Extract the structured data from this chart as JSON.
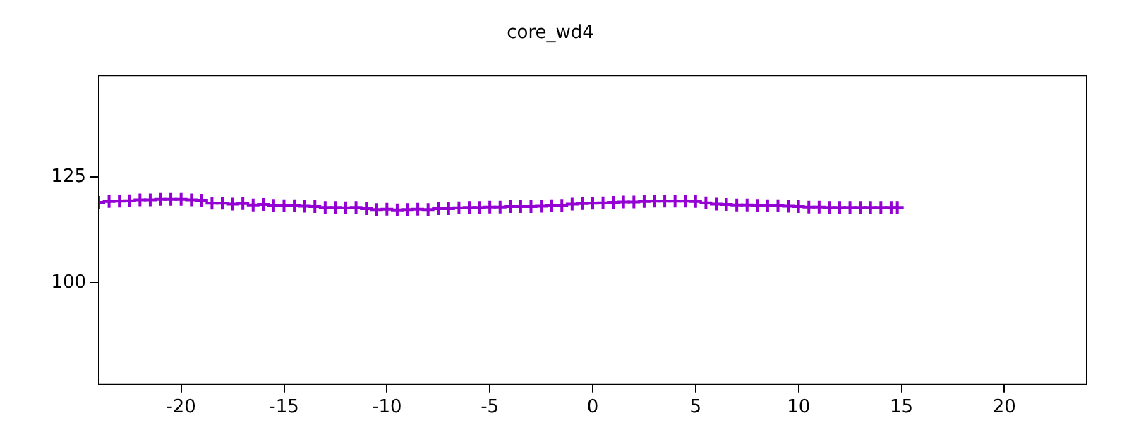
{
  "chart_data": {
    "type": "scatter",
    "title": "core_wd4",
    "xlim": [
      -24,
      24
    ],
    "xticks": [
      -20,
      -15,
      -10,
      -5,
      0,
      5,
      10,
      15,
      20
    ],
    "ylim": [
      76,
      149
    ],
    "yticks": [
      100,
      125
    ],
    "grid": false,
    "legend": false,
    "marker": "cross",
    "series": [
      {
        "color": "#9400d3",
        "x": [
          -24,
          -23.5,
          -23,
          -22.5,
          -22,
          -21.5,
          -21,
          -20.5,
          -20,
          -19.5,
          -19,
          -18.5,
          -18,
          -17.5,
          -17,
          -16.5,
          -16,
          -15.5,
          -15,
          -14.5,
          -14,
          -13.5,
          -13,
          -12.5,
          -12,
          -11.5,
          -11,
          -10.5,
          -10,
          -9.5,
          -9,
          -8.5,
          -8,
          -7.5,
          -7,
          -6.5,
          -6,
          -5.5,
          -5,
          -4.5,
          -4,
          -3.5,
          -3,
          -2.5,
          -2,
          -1.5,
          -1,
          -0.5,
          0,
          0.5,
          1,
          1.5,
          2,
          2.5,
          3,
          3.5,
          4,
          4.5,
          5,
          5.5,
          6,
          6.5,
          7,
          7.5,
          8,
          8.5,
          9,
          9.5,
          10,
          10.5,
          11,
          11.5,
          12,
          12.5,
          13,
          13.5,
          14,
          14.5,
          14.8
        ],
        "values": [
          119.0,
          119.2,
          119.3,
          119.4,
          119.6,
          119.6,
          119.7,
          119.7,
          119.7,
          119.6,
          119.5,
          118.8,
          118.8,
          118.6,
          118.7,
          118.4,
          118.5,
          118.3,
          118.2,
          118.2,
          118.1,
          118.0,
          117.8,
          117.8,
          117.7,
          117.8,
          117.5,
          117.3,
          117.4,
          117.2,
          117.3,
          117.4,
          117.3,
          117.5,
          117.5,
          117.7,
          117.8,
          117.8,
          117.9,
          117.9,
          118.0,
          118.0,
          118.0,
          118.1,
          118.2,
          118.3,
          118.6,
          118.7,
          118.8,
          118.9,
          119.0,
          119.1,
          119.1,
          119.2,
          119.3,
          119.3,
          119.3,
          119.3,
          119.2,
          118.9,
          118.6,
          118.5,
          118.4,
          118.4,
          118.3,
          118.2,
          118.2,
          118.1,
          118.0,
          117.9,
          117.9,
          117.8,
          117.8,
          117.8,
          117.8,
          117.8,
          117.8,
          117.8,
          117.8
        ]
      }
    ]
  }
}
